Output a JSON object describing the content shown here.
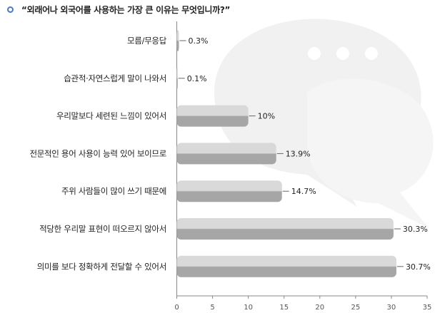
{
  "chart_data": {
    "type": "bar",
    "orientation": "horizontal",
    "title": "“외래어나 외국어를 사용하는 가장 큰 이유는 무엇입니까?”",
    "xlabel": "",
    "ylabel": "",
    "xlim": [
      0,
      35
    ],
    "xticks": [
      "0",
      "5",
      "10",
      "15",
      "20",
      "25",
      "30",
      "35"
    ],
    "grid": false,
    "legend": "none",
    "categories": [
      "모름/무응답",
      "습관적·자연스럽게 말이 나와서",
      "우리말보다 세련된 느낌이 있어서",
      "전문적인 용어 사용이 능력 있어 보이므로",
      "주위 사람들이 많이 쓰기 때문에",
      "적당한 우리말 표현이 떠오르지 않아서",
      "의미를 보다 정확하게 전달할 수 있어서"
    ],
    "values": [
      0.3,
      0.1,
      10,
      13.9,
      14.7,
      30.3,
      30.7
    ],
    "value_labels": [
      "0.3%",
      "0.1%",
      "10%",
      "13.9%",
      "14.7%",
      "30.3%",
      "30.7%"
    ],
    "colors": {
      "bar_top": "#d9d9d9",
      "bar_bottom": "#a6a6a6",
      "axis": "#888888",
      "bubble": "#f1f1f1",
      "bullet": "#4a78c2"
    }
  }
}
